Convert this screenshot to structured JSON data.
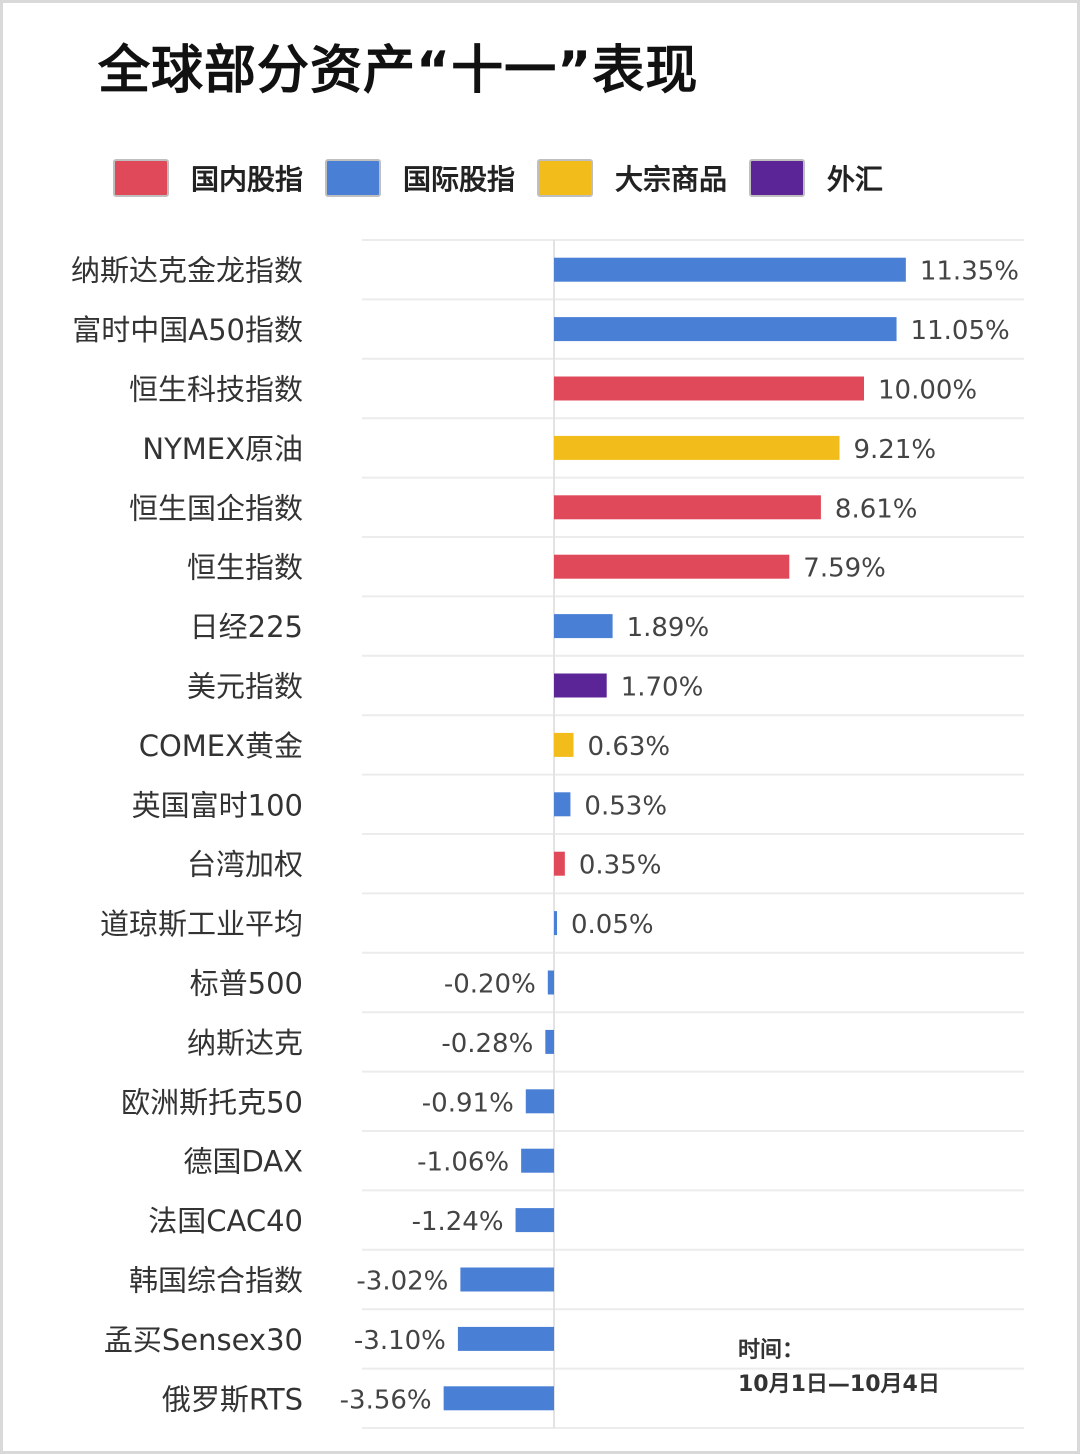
{
  "title": "全球部分资产“十一”表现",
  "categories": {
    "domestic": {
      "label": "国内股指",
      "color": "#e0495a"
    },
    "international": {
      "label": "国际股指",
      "color": "#4a7fd6"
    },
    "commodity": {
      "label": "大宗商品",
      "color": "#f2bd1b"
    },
    "fx": {
      "label": "外汇",
      "color": "#5b2597"
    }
  },
  "note": {
    "line1": "时间：",
    "line2": "10月1日—10月4日"
  },
  "chart_data": {
    "type": "bar",
    "orientation": "horizontal",
    "unit": "%",
    "categories": [
      "纳斯达克金龙指数",
      "富时中国A50指数",
      "恒生科技指数",
      "NYMEX原油",
      "恒生国企指数",
      "恒生指数",
      "日经225",
      "美元指数",
      "COMEX黄金",
      "英国富时100",
      "台湾加权",
      "道琼斯工业平均",
      "标普500",
      "纳斯达克",
      "欧洲斯托克50",
      "德国DAX",
      "法国CAC40",
      "韩国综合指数",
      "孟买Sensex30",
      "俄罗斯RTS"
    ],
    "values": [
      11.35,
      11.05,
      10.0,
      9.21,
      8.61,
      7.59,
      1.89,
      1.7,
      0.63,
      0.53,
      0.35,
      0.05,
      -0.2,
      -0.28,
      -0.91,
      -1.06,
      -1.24,
      -3.02,
      -3.1,
      -3.56
    ],
    "value_labels": [
      "11.35%",
      "11.05%",
      "10.00%",
      "9.21%",
      "8.61%",
      "7.59%",
      "1.89%",
      "1.70%",
      "0.63%",
      "0.53%",
      "0.35%",
      "0.05%",
      "-0.20%",
      "-0.28%",
      "-0.91%",
      "-1.06%",
      "-1.24%",
      "-3.02%",
      "-3.10%",
      "-3.56%"
    ],
    "groups": [
      "international",
      "international",
      "domestic",
      "commodity",
      "domestic",
      "domestic",
      "international",
      "fx",
      "commodity",
      "international",
      "domestic",
      "international",
      "international",
      "international",
      "international",
      "international",
      "international",
      "international",
      "international",
      "international"
    ],
    "legend_position": "top",
    "grid": true
  }
}
